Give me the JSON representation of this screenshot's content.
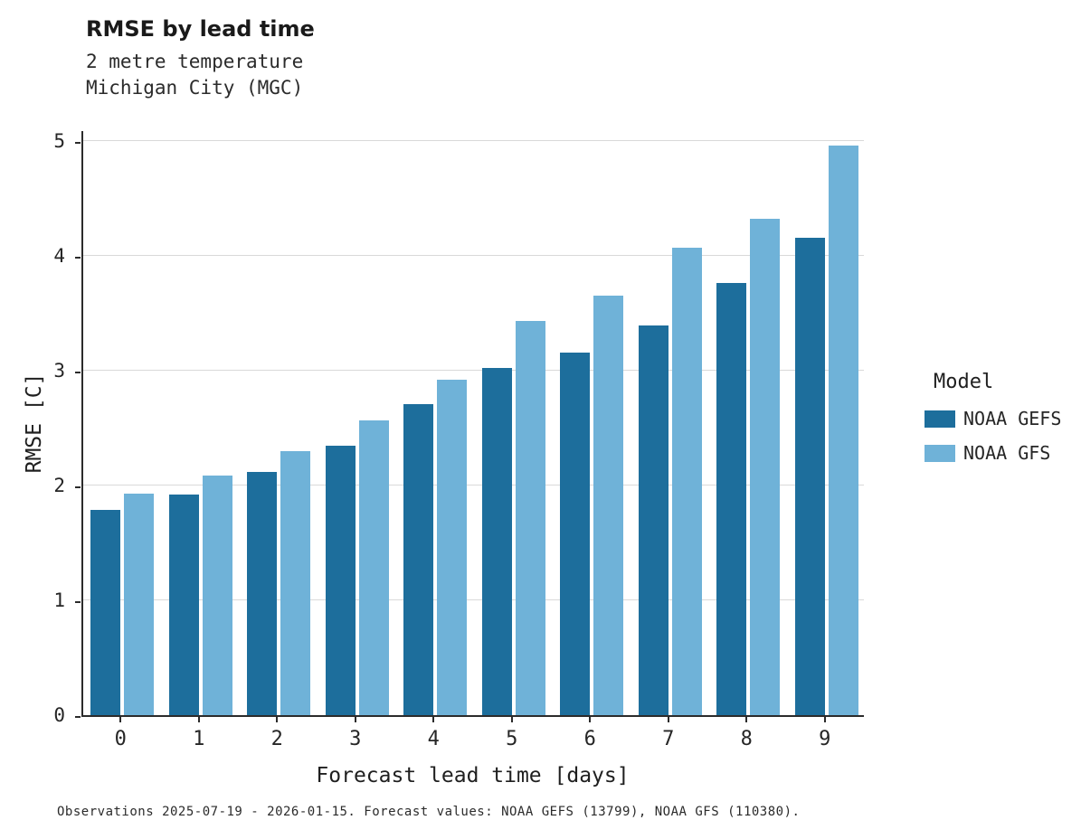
{
  "header": {
    "title": "RMSE by lead time",
    "subtitle_line1": "2 metre temperature",
    "subtitle_line2": "Michigan City (MGC)"
  },
  "caption": "Observations 2025-07-19 - 2026-01-15. Forecast values: NOAA GEFS (13799), NOAA GFS (110380).",
  "legend": {
    "title": "Model",
    "entries": [
      {
        "label": "NOAA GEFS",
        "color": "#1d6e9c"
      },
      {
        "label": "NOAA GFS",
        "color": "#6fb2d8"
      }
    ]
  },
  "chart_data": {
    "type": "bar",
    "title": "RMSE by lead time",
    "subtitle": "2 metre temperature — Michigan City (MGC)",
    "xlabel": "Forecast lead time [days]",
    "ylabel": "RMSE [C]",
    "categories": [
      "0",
      "1",
      "2",
      "3",
      "4",
      "5",
      "6",
      "7",
      "8",
      "9"
    ],
    "series": [
      {
        "name": "NOAA GEFS",
        "color": "#1d6e9c",
        "values": [
          1.79,
          1.92,
          2.12,
          2.35,
          2.71,
          3.02,
          3.16,
          3.39,
          3.76,
          4.16
        ]
      },
      {
        "name": "NOAA GFS",
        "color": "#6fb2d8",
        "values": [
          1.93,
          2.09,
          2.3,
          2.57,
          2.92,
          3.43,
          3.65,
          4.07,
          4.32,
          4.96
        ]
      }
    ],
    "ylim": [
      0,
      5
    ],
    "yticks": [
      0,
      1,
      2,
      3,
      4,
      5
    ],
    "grid": true,
    "legend_position": "right"
  }
}
